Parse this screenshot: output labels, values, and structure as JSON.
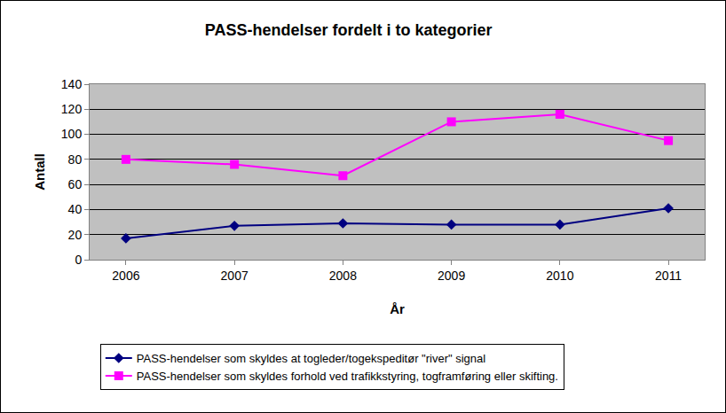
{
  "chart_data": {
    "type": "line",
    "title": "PASS-hendelser fordelt i to kategorier",
    "x_label": "År",
    "y_label": "Antall",
    "categories": [
      "2006",
      "2007",
      "2008",
      "2009",
      "2010",
      "2011"
    ],
    "series": [
      {
        "name": "PASS-hendelser som skyldes at togleder/togekspeditør \"river\" signal",
        "color": "#000080",
        "marker": "diamond",
        "line_style": "solid",
        "values": [
          17,
          27,
          29,
          28,
          28,
          41
        ]
      },
      {
        "name": "PASS-hendelser som skyldes forhold ved trafikkstyring, togframføring eller skifting.",
        "color": "#ff00ff",
        "marker": "square",
        "line_style": "solid",
        "values": [
          80,
          76,
          67,
          110,
          116,
          95
        ]
      }
    ],
    "ylim": [
      0,
      140
    ],
    "yticks": [
      0,
      20,
      40,
      60,
      80,
      100,
      120,
      140
    ],
    "grid": true,
    "legend": "bottom"
  }
}
